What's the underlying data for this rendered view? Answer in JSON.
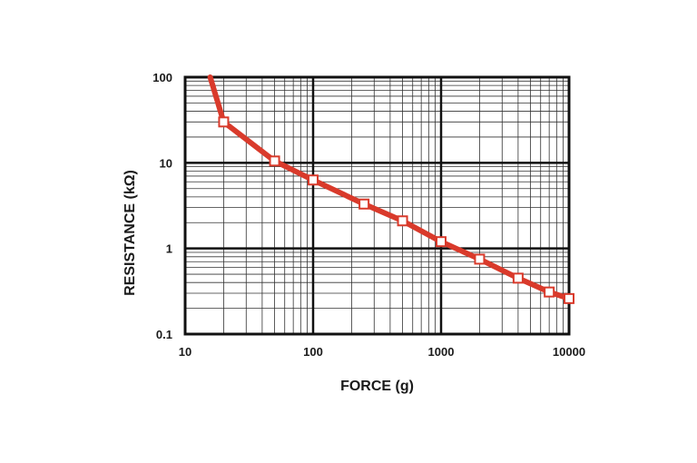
{
  "chart_data": {
    "type": "line",
    "title": "",
    "xlabel": "FORCE (g)",
    "ylabel": "RESISTANCE (kΩ)",
    "x_scale": "log",
    "y_scale": "log",
    "xlim": [
      10,
      10000
    ],
    "ylim": [
      0.1,
      100
    ],
    "x_ticks": [
      "10",
      "100",
      "1000",
      "10000"
    ],
    "y_ticks": [
      "0.1",
      "1",
      "10",
      "100"
    ],
    "grid": true,
    "line_color": "#d93a2b",
    "marker": "open-square",
    "series": [
      {
        "x": [
          20,
          50,
          100,
          250,
          500,
          1000,
          2000,
          4000,
          7000,
          10000
        ],
        "y": [
          30,
          10.5,
          6.3,
          3.3,
          2.1,
          1.2,
          0.75,
          0.45,
          0.31,
          0.26
        ]
      }
    ],
    "extrapolated_segment": {
      "x": [
        15.7,
        20
      ],
      "y": [
        100,
        30
      ]
    }
  }
}
